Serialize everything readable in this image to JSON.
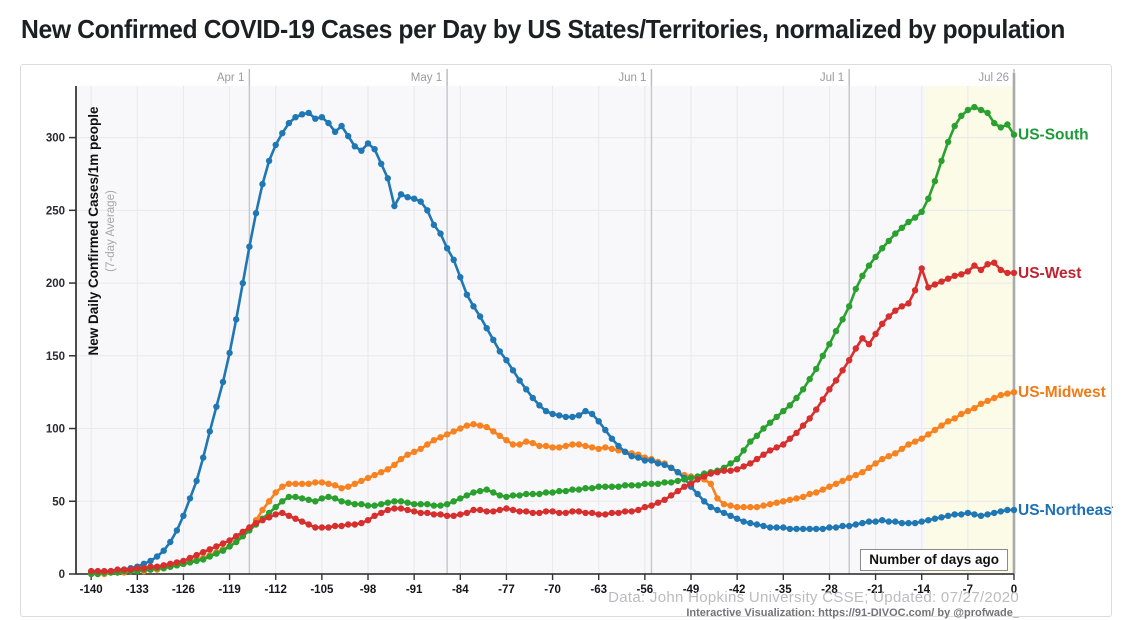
{
  "title": "New Confirmed COVID-19 Cases per Day by US States/Territories, normalized by population",
  "footer": {
    "line1": "Data: John Hopkins University CSSE; Updated: 07/27/2020",
    "line2": "Interactive Visualization: https://91-DIVOC.com/ by @profwade_"
  },
  "chart": {
    "x_axis": {
      "label_box": "Number of days ago",
      "ticks": [
        -140,
        -133,
        -126,
        -119,
        -112,
        -105,
        -98,
        -91,
        -84,
        -77,
        -70,
        -63,
        -56,
        -49,
        -42,
        -35,
        -28,
        -21,
        -14,
        -7,
        0
      ]
    },
    "y_axis": {
      "label_main": "New Daily Confirmed Cases/1m people",
      "label_sub": "(7-day Average)",
      "ticks": [
        0,
        50,
        100,
        150,
        200,
        250,
        300
      ]
    },
    "top_axis": {
      "dates": [
        {
          "label": "Apr 1",
          "day": -116
        },
        {
          "label": "May 1",
          "day": -86
        },
        {
          "label": "Jun 1",
          "day": -55
        },
        {
          "label": "Jul 1",
          "day": -25
        },
        {
          "label": "Jul 26",
          "day": 0
        }
      ]
    },
    "highlight_region": {
      "from_day": -13.5,
      "to_day": 0,
      "color": "#fbfbe7"
    },
    "colors": {
      "plot_bg": "#f8f8fa",
      "grid_minor": "#e8e8ee",
      "grid_month": "#c6c6ce",
      "axis": "#222222",
      "right_axis": "#a9a9b0"
    },
    "chart_data": {
      "type": "line",
      "title": "New Confirmed COVID-19 Cases per Day by US States/Territories, normalized by population",
      "xlabel": "Number of days ago",
      "ylabel": "New Daily Confirmed Cases/1m people (7-day Average)",
      "x_start": -140,
      "x_step": 1,
      "xlim": [
        -142.3,
        0
      ],
      "ylim": [
        0,
        335
      ],
      "grid": true,
      "legend_position": "right-edge-labels",
      "series": [
        {
          "name": "US-Midwest",
          "color": "#f8821f",
          "label_color": "#ef7b16",
          "values": [
            0,
            0,
            0,
            1,
            1,
            1,
            2,
            2,
            2,
            3,
            3,
            4,
            5,
            6,
            7,
            8,
            10,
            11,
            13,
            15,
            17,
            19,
            22,
            26,
            31,
            37,
            44,
            50,
            56,
            60,
            62,
            62,
            62,
            62,
            63,
            63,
            62,
            61,
            59,
            60,
            62,
            64,
            66,
            68,
            70,
            72,
            75,
            79,
            82,
            84,
            86,
            89,
            92,
            94,
            96,
            98,
            100,
            102,
            103,
            102,
            101,
            98,
            95,
            92,
            89,
            89,
            91,
            90,
            88,
            88,
            87,
            87,
            88,
            89,
            89,
            88,
            87,
            86,
            87,
            86,
            85,
            84,
            83,
            82,
            80,
            79,
            77,
            76,
            73,
            70,
            68,
            67,
            66,
            65,
            62,
            52,
            48,
            47,
            46,
            46,
            46,
            46,
            47,
            48,
            49,
            50,
            51,
            52,
            53,
            55,
            56,
            58,
            60,
            62,
            64,
            66,
            68,
            70,
            73,
            76,
            79,
            81,
            83,
            86,
            89,
            91,
            93,
            96,
            99,
            102,
            105,
            107,
            110,
            112,
            114,
            117,
            119,
            121,
            123,
            124,
            125
          ]
        },
        {
          "name": "US-Northeast",
          "color": "#1f77b4",
          "label_color": "#1f6fb4",
          "values": [
            1,
            1,
            1,
            2,
            2,
            3,
            4,
            5,
            7,
            9,
            12,
            16,
            22,
            30,
            40,
            52,
            64,
            80,
            98,
            115,
            132,
            152,
            175,
            200,
            225,
            248,
            268,
            284,
            295,
            303,
            310,
            314,
            316,
            317,
            313,
            314,
            310,
            304,
            308,
            301,
            294,
            291,
            296,
            292,
            282,
            272,
            253,
            261,
            259,
            258,
            256,
            250,
            240,
            234,
            224,
            216,
            204,
            192,
            184,
            177,
            169,
            161,
            153,
            147,
            140,
            133,
            127,
            121,
            116,
            112,
            110,
            109,
            108,
            108,
            109,
            112,
            110,
            105,
            99,
            93,
            88,
            84,
            81,
            80,
            78,
            78,
            76,
            75,
            73,
            70,
            66,
            60,
            55,
            50,
            46,
            44,
            42,
            40,
            38,
            36,
            35,
            34,
            33,
            32,
            32,
            32,
            31,
            31,
            31,
            31,
            31,
            31,
            32,
            32,
            33,
            33,
            34,
            35,
            36,
            36,
            37,
            36,
            36,
            35,
            35,
            35,
            36,
            37,
            38,
            39,
            40,
            41,
            41,
            42,
            41,
            40,
            41,
            42,
            43,
            44,
            44
          ]
        },
        {
          "name": "US-South",
          "color": "#2aa12e",
          "label_color": "#1d9b38",
          "values": [
            0,
            0,
            1,
            1,
            1,
            2,
            2,
            2,
            3,
            3,
            4,
            4,
            5,
            6,
            7,
            8,
            9,
            10,
            12,
            14,
            16,
            19,
            22,
            26,
            30,
            34,
            38,
            42,
            46,
            50,
            53,
            53,
            52,
            51,
            50,
            52,
            53,
            52,
            50,
            49,
            48,
            48,
            47,
            47,
            48,
            49,
            50,
            50,
            49,
            48,
            48,
            48,
            47,
            47,
            48,
            50,
            52,
            54,
            56,
            57,
            58,
            56,
            54,
            53,
            54,
            54,
            55,
            55,
            55,
            56,
            56,
            57,
            57,
            58,
            58,
            59,
            59,
            60,
            60,
            60,
            60,
            61,
            61,
            61,
            62,
            62,
            62,
            63,
            63,
            64,
            65,
            66,
            67,
            69,
            70,
            71,
            73,
            76,
            79,
            85,
            91,
            95,
            100,
            104,
            108,
            112,
            116,
            121,
            127,
            134,
            141,
            150,
            158,
            167,
            175,
            184,
            196,
            205,
            212,
            218,
            224,
            229,
            234,
            238,
            242,
            245,
            249,
            258,
            270,
            284,
            297,
            308,
            315,
            319,
            321,
            319,
            317,
            310,
            307,
            309,
            302
          ]
        },
        {
          "name": "US-West",
          "color": "#d62f2e",
          "label_color": "#bd2430",
          "values": [
            2,
            2,
            2,
            2,
            3,
            3,
            3,
            4,
            4,
            5,
            5,
            6,
            7,
            8,
            9,
            11,
            13,
            15,
            17,
            19,
            21,
            23,
            26,
            29,
            32,
            35,
            37,
            39,
            41,
            42,
            40,
            38,
            36,
            34,
            32,
            32,
            32,
            33,
            33,
            34,
            34,
            35,
            37,
            40,
            42,
            44,
            45,
            45,
            44,
            43,
            42,
            42,
            41,
            41,
            40,
            40,
            41,
            42,
            44,
            44,
            43,
            43,
            44,
            45,
            44,
            43,
            43,
            42,
            42,
            43,
            43,
            42,
            42,
            43,
            43,
            42,
            42,
            41,
            41,
            42,
            42,
            43,
            43,
            44,
            46,
            47,
            49,
            51,
            54,
            57,
            60,
            62,
            65,
            67,
            69,
            70,
            71,
            71,
            72,
            74,
            76,
            79,
            82,
            85,
            87,
            89,
            93,
            97,
            102,
            107,
            113,
            120,
            127,
            133,
            140,
            147,
            155,
            162,
            158,
            165,
            172,
            177,
            181,
            184,
            186,
            195,
            210,
            197,
            199,
            201,
            203,
            205,
            206,
            208,
            212,
            209,
            213,
            214,
            209,
            207,
            207
          ]
        }
      ]
    }
  }
}
